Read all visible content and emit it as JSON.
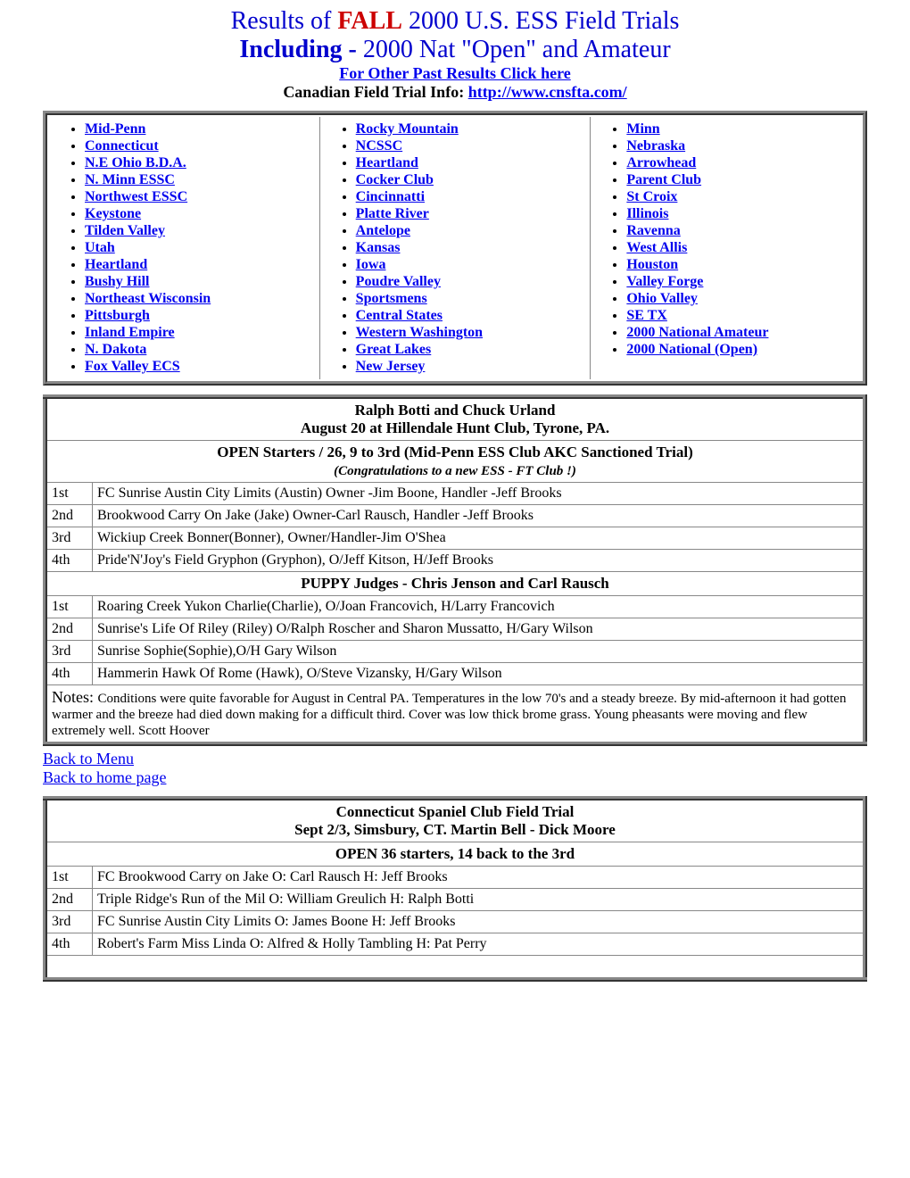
{
  "header": {
    "line1_prefix": "Results of ",
    "line1_fall": "FALL",
    "line1_suffix": " 2000 U.S. ESS Field Trials",
    "line2_including": "Including - ",
    "line2_rest": " 2000 Nat \"Open\" and Amateur",
    "past_results_link": "For Other Past Results Click here",
    "canadian_label": "Canadian Field Trial Info: ",
    "canadian_url": "http://www.cnsfta.com/"
  },
  "nav": {
    "col1": [
      "Mid-Penn",
      "Connecticut",
      "N.E Ohio B.D.A.",
      "N. Minn ESSC",
      "Northwest ESSC",
      "Keystone",
      "Tilden Valley",
      "Utah",
      "Heartland",
      "Bushy Hill",
      "Northeast Wisconsin",
      "Pittsburgh",
      "Inland Empire",
      "N. Dakota",
      "Fox Valley ECS"
    ],
    "col2": [
      "Rocky Mountain",
      "NCSSC",
      " Heartland",
      "Cocker Club",
      "Cincinnatti",
      " Platte River",
      "Antelope",
      "Kansas",
      "Iowa",
      "Poudre Valley",
      "Sportsmens",
      "Central States",
      "Western Washington",
      "Great Lakes",
      "New Jersey"
    ],
    "col3": [
      "Minn",
      "Nebraska",
      "Arrowhead",
      "Parent Club",
      "St Croix ",
      "Illinois",
      "Ravenna",
      "West Allis",
      "Houston",
      "Valley Forge",
      "Ohio Valley",
      " SE TX",
      "2000 National Amateur",
      "2000 National (Open)"
    ]
  },
  "trial1": {
    "judges": "Ralph Botti and Chuck Urland",
    "location": "August 20 at Hillendale Hunt Club,  Tyrone, PA.",
    "open_header": "OPEN   Starters / 26, 9 to 3rd  (Mid-Penn ESS Club AKC Sanctioned Trial)",
    "congrats": "(Congratulations to a new ESS -  FT Club !)",
    "open_results": [
      {
        "place": "1st",
        "text": "FC Sunrise Austin City Limits (Austin) Owner -Jim Boone, Handler -Jeff Brooks"
      },
      {
        "place": "2nd",
        "text": "Brookwood Carry On Jake (Jake) Owner-Carl Rausch, Handler -Jeff Brooks"
      },
      {
        "place": "3rd",
        "text": "Wickiup Creek Bonner(Bonner), Owner/Handler-Jim O'Shea"
      },
      {
        "place": "4th",
        "text": "Pride'N'Joy's Field Gryphon (Gryphon), O/Jeff Kitson, H/Jeff  Brooks"
      }
    ],
    "puppy_header": "PUPPY  Judges -  Chris Jenson and Carl Rausch",
    "puppy_results": [
      {
        "place": "1st",
        "text": "Roaring Creek Yukon Charlie(Charlie), O/Joan Francovich,  H/Larry Francovich"
      },
      {
        "place": "2nd",
        "text": " Sunrise's Life Of Riley (Riley) O/Ralph Roscher and Sharon Mussatto, H/Gary Wilson"
      },
      {
        "place": "3rd",
        "text": "Sunrise Sophie(Sophie),O/H Gary Wilson"
      },
      {
        "place": "4th",
        "text": "Hammerin Hawk Of Rome (Hawk), O/Steve Vizansky, H/Gary Wilson"
      }
    ],
    "notes_label": "Notes: ",
    "notes_text": "Conditions were quite favorable for August in Central PA. Temperatures in the low 70's and a steady breeze. By mid-afternoon it had gotten warmer and the breeze had died down making for a difficult third. Cover was low thick brome grass. Young pheasants were moving and flew extremely well.                                                    Scott Hoover"
  },
  "back_links": {
    "menu": "Back to Menu",
    "home": "Back to home page"
  },
  "trial2": {
    "title": "Connecticut Spaniel Club Field Trial",
    "location": "Sept 2/3, Simsbury, CT.  Martin Bell - Dick Moore",
    "open_header": "OPEN   36 starters,  14 back to the 3rd",
    "open_results": [
      {
        "place": "1st",
        "text": "FC Brookwood Carry on Jake  O: Carl Rausch H: Jeff Brooks"
      },
      {
        "place": "2nd",
        "text": "Triple Ridge's Run of the Mil  O: William Greulich H: Ralph Botti"
      },
      {
        "place": "3rd",
        "text": "FC Sunrise Austin City Limits  O: James Boone  H: Jeff Brooks"
      },
      {
        "place": "4th",
        "text": "Robert's Farm Miss Linda  O: Alfred & Holly Tambling  H: Pat Perry"
      }
    ]
  }
}
